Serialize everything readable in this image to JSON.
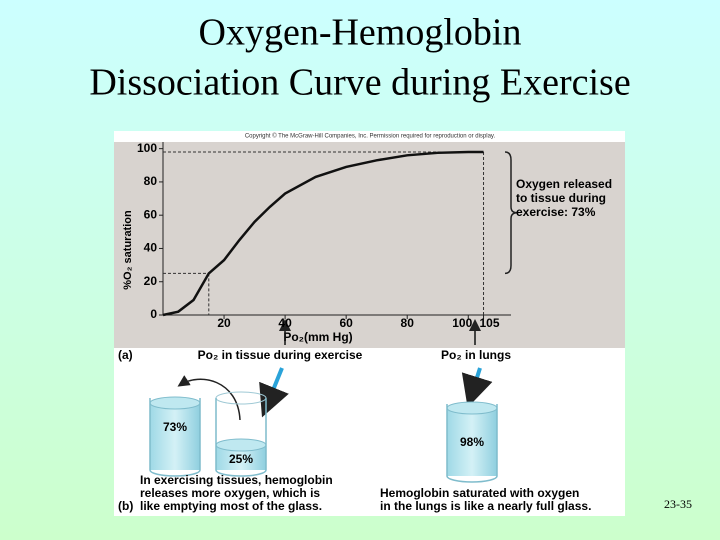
{
  "slide": {
    "title_lines": [
      "Oxygen-Hemoglobin",
      "Dissociation Curve during Exercise"
    ],
    "copyright": "Copyright © The McGraw-Hill Companies, Inc. Permission required for reproduction or display.",
    "slide_number": "23-35"
  },
  "chart_data": {
    "type": "line",
    "panel_label": "(a)",
    "x_label": "Po₂(mm Hg)",
    "y_label": "%O₂ saturation",
    "x": [
      0,
      5,
      10,
      15,
      20,
      25,
      30,
      35,
      40,
      50,
      60,
      70,
      80,
      90,
      100,
      105
    ],
    "values": [
      0,
      2,
      9,
      25,
      33,
      45,
      56,
      65,
      73,
      83,
      89,
      93,
      96,
      97.5,
      98,
      98
    ],
    "color": "#111111",
    "xlim": [
      0,
      114
    ],
    "ylim": [
      0,
      104
    ],
    "xticks": [
      20,
      40,
      60,
      80,
      100,
      105
    ],
    "yticks": [
      0,
      20,
      40,
      60,
      80,
      100
    ],
    "guides": [
      {
        "x": 15,
        "y": 25
      },
      {
        "x": 105,
        "y": 98
      }
    ],
    "bracket_text": [
      "Oxygen released",
      "to tissue during",
      "exercise: 73%"
    ],
    "tissue_label": "Po₂ in tissue during exercise",
    "lungs_label": "Po₂ in lungs"
  },
  "panel_b": {
    "label": "(b)",
    "tissue_full": "73%",
    "tissue_empty": "25%",
    "lungs": "98%",
    "tissue_caption": [
      "In exercising tissues, hemoglobin",
      "releases more oxygen, which is",
      "like emptying most of the glass."
    ],
    "lungs_caption": [
      "Hemoglobin saturated with oxygen",
      "in the lungs is like a nearly full glass."
    ]
  }
}
